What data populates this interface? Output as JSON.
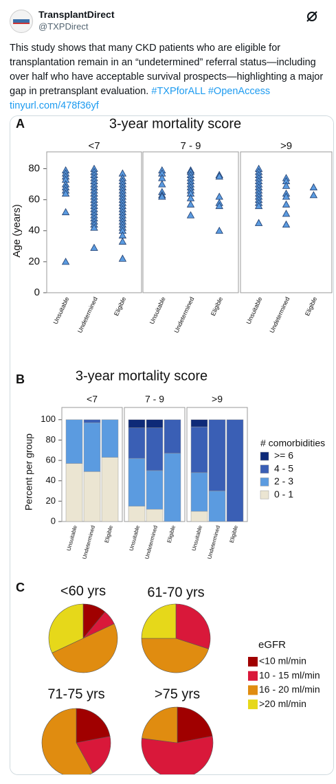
{
  "tweet": {
    "author": "TransplantDirect",
    "handle": "@TXPDirect",
    "text": "This study shows that many CKD patients who are eligible for transplantation remain in an “undetermined” referral status—including over half who have acceptable survival prospects—highlighting a major gap in pretransplant evaluation.",
    "hashtags": [
      "#TXPforALL",
      "#OpenAccess"
    ],
    "link": "tinyurl.com/478f36yf"
  },
  "chart_data": [
    {
      "type": "strip",
      "label": "A",
      "title": "3-year mortality score",
      "ylabel": "Age (years)",
      "ylim": [
        0,
        90
      ],
      "yticks": [
        0,
        20,
        40,
        60,
        80
      ],
      "color": "#5b9be0",
      "categories": [
        "Unsuitable",
        "Undetermined",
        "Eligible"
      ],
      "panels": [
        {
          "name": "<7",
          "values": [
            [
              79,
              77,
              75,
              73,
              70,
              68,
              66,
              64,
              52,
              20
            ],
            [
              80,
              78,
              76,
              74,
              72,
              70,
              68,
              66,
              64,
              62,
              60,
              58,
              56,
              54,
              52,
              50,
              48,
              46,
              44,
              42,
              29
            ],
            [
              77,
              74,
              72,
              70,
              68,
              66,
              64,
              62,
              60,
              58,
              56,
              54,
              52,
              50,
              48,
              46,
              44,
              42,
              40,
              37,
              33,
              22
            ]
          ]
        },
        {
          "name": "7 - 9",
          "values": [
            [
              79,
              77,
              74,
              70,
              65,
              63,
              62
            ],
            [
              79,
              78,
              76,
              74,
              72,
              70,
              68,
              66,
              64,
              61,
              57,
              50
            ],
            [
              76,
              75,
              62,
              58,
              56,
              40
            ]
          ]
        },
        {
          "name": ">9",
          "values": [
            [
              80,
              78,
              76,
              74,
              72,
              70,
              68,
              66,
              64,
              62,
              60,
              58,
              56,
              45
            ],
            [
              74,
              72,
              69,
              64,
              62,
              57,
              51,
              44
            ],
            [
              68,
              63
            ]
          ]
        }
      ]
    },
    {
      "type": "stacked_bar",
      "label": "B",
      "title": "3-year mortality score",
      "ylabel": "Percent per group",
      "ylim": [
        0,
        112
      ],
      "yticks": [
        0,
        20,
        40,
        60,
        80,
        100
      ],
      "legend_title": "# comorbidities",
      "categories": [
        "Unsuitable",
        "Undetermined",
        "Eligible"
      ],
      "series": [
        {
          "name": "0 - 1",
          "color": "#ebe5d2"
        },
        {
          "name": "2 - 3",
          "color": "#5b9be0"
        },
        {
          "name": "4 - 5",
          "color": "#3a5fb5"
        },
        {
          "name": ">= 6",
          "color": "#0e2a78"
        }
      ],
      "panels": [
        {
          "name": "<7",
          "values": [
            [
              57,
              49,
              63
            ],
            [
              43,
              48,
              37
            ],
            [
              0,
              3,
              0
            ],
            [
              0,
              0,
              0
            ]
          ]
        },
        {
          "name": "7 - 9",
          "values": [
            [
              15,
              12,
              0
            ],
            [
              47,
              38,
              67
            ],
            [
              30,
              42,
              33
            ],
            [
              8,
              8,
              0
            ]
          ]
        },
        {
          "name": ">9",
          "values": [
            [
              10,
              0,
              0
            ],
            [
              38,
              30,
              0
            ],
            [
              45,
              70,
              100
            ],
            [
              7,
              0,
              0
            ]
          ]
        }
      ]
    },
    {
      "type": "pie",
      "label": "C",
      "legend_title": "eGFR",
      "categories": [
        "<10 ml/min",
        "10 - 15 ml/min",
        "16 - 20 ml/min",
        ">20 ml/min"
      ],
      "colors": [
        "#a00000",
        "#d9183a",
        "#e08c10",
        "#e6d81a"
      ],
      "pies": [
        {
          "title": "<60 yrs",
          "values": [
            11,
            7,
            50,
            32
          ]
        },
        {
          "title": "61-70 yrs",
          "values": [
            0,
            30,
            45,
            25
          ]
        },
        {
          "title": "71-75 yrs",
          "values": [
            22,
            20,
            58,
            0
          ]
        },
        {
          "title": ">75 yrs",
          "values": [
            22,
            55,
            23,
            0
          ]
        }
      ]
    }
  ]
}
